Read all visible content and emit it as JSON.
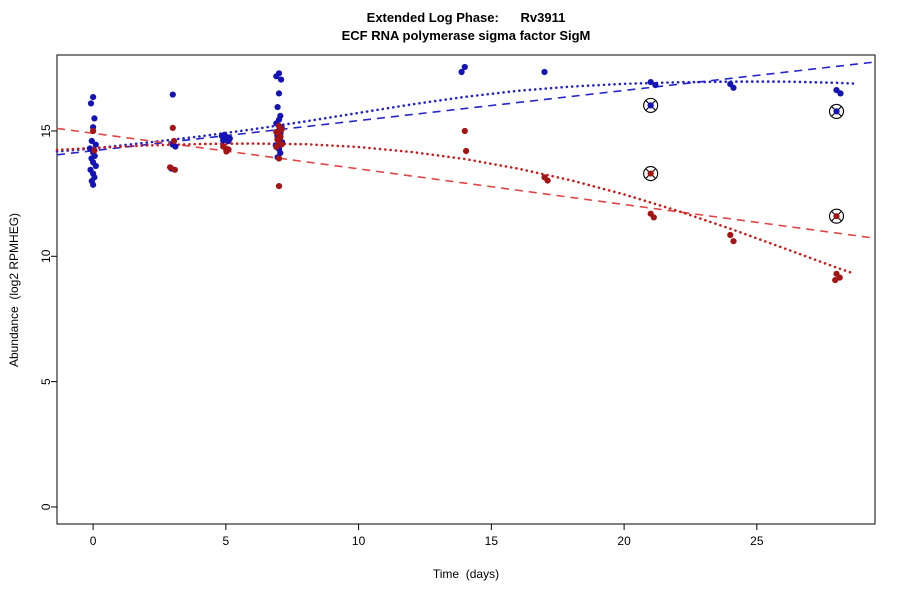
{
  "chart_data": {
    "type": "scatter",
    "title": "Extended Log Phase:      Rv3911",
    "subtitle": "ECF RNA polymerase sigma factor SigM",
    "xlabel": "Time  (days)",
    "ylabel": "Abundance  (log2 RPMHEG)",
    "xlim": [
      -1.36,
      29.45
    ],
    "ylim": [
      -0.68,
      18.03
    ],
    "xticks": [
      0,
      5,
      10,
      15,
      20,
      25
    ],
    "yticks": [
      0,
      5,
      10,
      15
    ],
    "grid": false,
    "legend": "none",
    "background": "#ffffff",
    "series": [
      {
        "name": "blue-condition",
        "color": "#1414b4",
        "marker": "filled-circle",
        "points": [
          [
            0,
            16.35
          ],
          [
            -0.08,
            16.1
          ],
          [
            0.05,
            15.5
          ],
          [
            0,
            15.15
          ],
          [
            -0.05,
            14.6
          ],
          [
            0.1,
            14.45
          ],
          [
            -0.12,
            14.3
          ],
          [
            0,
            14.15
          ],
          [
            0.06,
            14.0
          ],
          [
            -0.06,
            13.9
          ],
          [
            0,
            13.75
          ],
          [
            0.1,
            13.6
          ],
          [
            -0.1,
            13.45
          ],
          [
            0,
            13.3
          ],
          [
            0.05,
            13.15
          ],
          [
            -0.05,
            13.0
          ],
          [
            0,
            12.85
          ],
          [
            3,
            16.45
          ],
          [
            3,
            14.45
          ],
          [
            3.1,
            14.38
          ],
          [
            2.95,
            13.5
          ],
          [
            4.85,
            14.8
          ],
          [
            4.95,
            14.85
          ],
          [
            5.05,
            14.75
          ],
          [
            5.15,
            14.7
          ],
          [
            5,
            14.65
          ],
          [
            5.1,
            14.6
          ],
          [
            4.9,
            14.62
          ],
          [
            7,
            17.3
          ],
          [
            6.9,
            17.18
          ],
          [
            7.08,
            17.05
          ],
          [
            7,
            16.5
          ],
          [
            6.95,
            15.95
          ],
          [
            7.05,
            15.6
          ],
          [
            7,
            15.45
          ],
          [
            6.9,
            15.3
          ],
          [
            7.1,
            15.15
          ],
          [
            7,
            15.02
          ],
          [
            7.06,
            14.9
          ],
          [
            6.94,
            14.8
          ],
          [
            7,
            14.7
          ],
          [
            7.12,
            14.55
          ],
          [
            6.88,
            14.42
          ],
          [
            7,
            14.28
          ],
          [
            7.05,
            14.12
          ],
          [
            6.95,
            13.95
          ],
          [
            14,
            17.55
          ],
          [
            13.88,
            17.35
          ],
          [
            17,
            17.35
          ],
          [
            21,
            16.95
          ],
          [
            21.18,
            16.83
          ],
          [
            24,
            16.87
          ],
          [
            24.12,
            16.72
          ],
          [
            28,
            16.63
          ],
          [
            28.15,
            16.5
          ]
        ]
      },
      {
        "name": "red-condition",
        "color": "#a31515",
        "marker": "filled-circle",
        "points": [
          [
            0,
            15.0
          ],
          [
            0.05,
            14.22
          ],
          [
            3,
            15.12
          ],
          [
            3.05,
            14.6
          ],
          [
            2.9,
            13.55
          ],
          [
            3.08,
            13.45
          ],
          [
            4.9,
            14.38
          ],
          [
            5,
            14.3
          ],
          [
            5.1,
            14.26
          ],
          [
            5.02,
            14.18
          ],
          [
            7,
            15.2
          ],
          [
            7.1,
            15.06
          ],
          [
            6.9,
            14.96
          ],
          [
            7,
            14.86
          ],
          [
            7.06,
            14.76
          ],
          [
            6.94,
            14.66
          ],
          [
            7,
            14.56
          ],
          [
            7.1,
            14.46
          ],
          [
            6.9,
            14.36
          ],
          [
            7,
            13.9
          ],
          [
            7,
            12.8
          ],
          [
            14,
            15.0
          ],
          [
            14.05,
            14.2
          ],
          [
            17,
            13.15
          ],
          [
            17.12,
            13.02
          ],
          [
            21,
            11.7
          ],
          [
            21.12,
            11.55
          ],
          [
            24,
            10.85
          ],
          [
            24.12,
            10.6
          ],
          [
            28,
            9.3
          ],
          [
            28.12,
            9.15
          ],
          [
            27.95,
            9.05
          ]
        ]
      }
    ],
    "outlier_points": [
      {
        "x": 21,
        "y": 16.02,
        "color": "#1414b4",
        "marker": "circle-cross-outlier"
      },
      {
        "x": 28,
        "y": 15.78,
        "color": "#1414b4",
        "marker": "circle-cross-outlier"
      },
      {
        "x": 21,
        "y": 13.3,
        "color": "#a31515",
        "marker": "circle-cross-outlier"
      },
      {
        "x": 28,
        "y": 11.6,
        "color": "#a31515",
        "marker": "circle-cross-outlier"
      }
    ],
    "lines": [
      {
        "name": "blue-linear-fit",
        "color": "#2626cc",
        "style": "dashed",
        "width": 1.6,
        "points": [
          [
            -1.36,
            14.05
          ],
          [
            29.45,
            17.75
          ]
        ]
      },
      {
        "name": "blue-smooth-fit",
        "color": "#2222cc",
        "style": "dotted",
        "width": 2.6,
        "points": [
          [
            -1.36,
            14.18
          ],
          [
            0,
            14.3
          ],
          [
            2,
            14.53
          ],
          [
            4,
            14.78
          ],
          [
            6,
            15.06
          ],
          [
            8,
            15.38
          ],
          [
            10,
            15.72
          ],
          [
            12,
            16.06
          ],
          [
            14,
            16.36
          ],
          [
            16,
            16.6
          ],
          [
            18,
            16.77
          ],
          [
            20,
            16.88
          ],
          [
            22,
            16.94
          ],
          [
            24,
            16.97
          ],
          [
            26,
            16.97
          ],
          [
            28,
            16.92
          ],
          [
            28.8,
            16.88
          ]
        ]
      },
      {
        "name": "red-linear-fit",
        "color": "#e04545",
        "style": "dashed",
        "width": 1.6,
        "points": [
          [
            -1.36,
            15.1
          ],
          [
            29.45,
            10.72
          ]
        ]
      },
      {
        "name": "red-smooth-fit",
        "color": "#cc1a1a",
        "style": "dotted",
        "width": 2.6,
        "points": [
          [
            -1.36,
            14.25
          ],
          [
            0,
            14.32
          ],
          [
            2,
            14.42
          ],
          [
            4,
            14.48
          ],
          [
            6,
            14.5
          ],
          [
            8,
            14.47
          ],
          [
            10,
            14.36
          ],
          [
            12,
            14.16
          ],
          [
            14,
            13.88
          ],
          [
            16,
            13.5
          ],
          [
            18,
            13.03
          ],
          [
            20,
            12.47
          ],
          [
            22,
            11.82
          ],
          [
            24,
            11.1
          ],
          [
            26,
            10.33
          ],
          [
            28,
            9.55
          ],
          [
            28.6,
            9.33
          ]
        ]
      }
    ]
  }
}
